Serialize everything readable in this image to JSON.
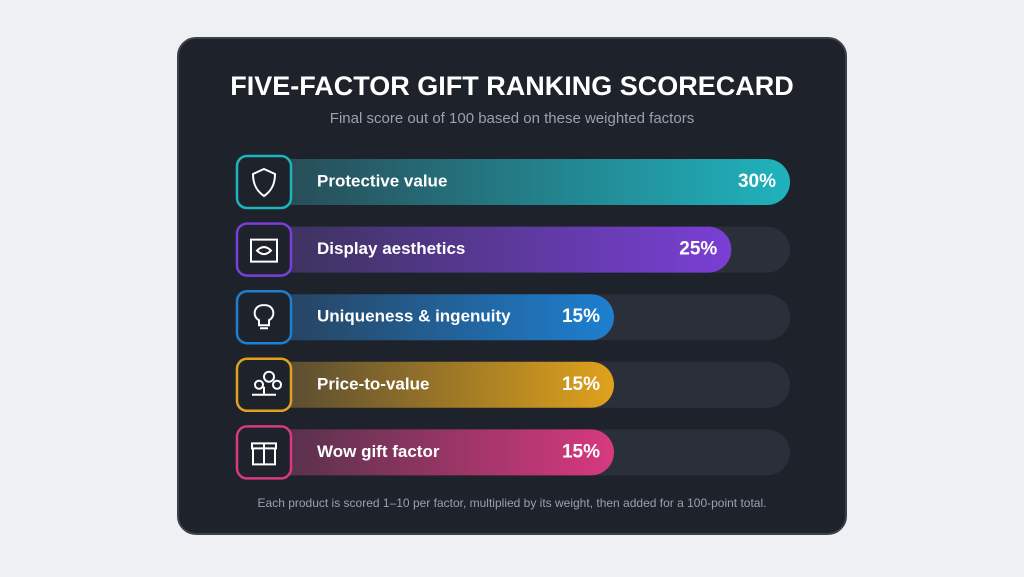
{
  "chart_data": {
    "type": "hbar",
    "title": "FIVE-FACTOR GIFT RANKING SCORECARD",
    "subtitle": "Final score out of 100 based on these weighted factors",
    "footnote": "Each product is scored 1–10 per factor, multiplied by its weight, then added for a 100-point total.",
    "categories": [
      "Protective value",
      "Display aesthetics",
      "Uniqueness & ingenuity",
      "Price-to-value",
      "Wow gift factor"
    ],
    "values": [
      30,
      25,
      15,
      15,
      15
    ],
    "value_labels": [
      "30%",
      "25%",
      "15%",
      "15%",
      "15%"
    ],
    "colors": [
      "#1fb3bd",
      "#7a3fd6",
      "#1e7fd0",
      "#e0a21c",
      "#d8397f"
    ]
  }
}
